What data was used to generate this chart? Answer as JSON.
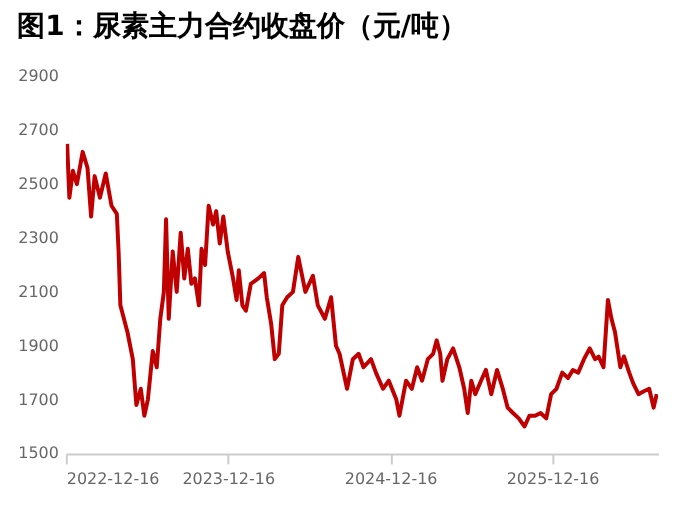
{
  "chart_data": {
    "type": "line",
    "title": "图1：尿素主力合约收盘价（元/吨）",
    "x": [
      "2022-12-19",
      "2022-12-24",
      "2023-01-01",
      "2023-01-10",
      "2023-01-23",
      "2023-02-03",
      "2023-02-11",
      "2023-02-19",
      "2023-03-03",
      "2023-03-16",
      "2023-03-29",
      "2023-04-10",
      "2023-04-14",
      "2023-04-18",
      "2023-04-26",
      "2023-05-04",
      "2023-05-16",
      "2023-05-24",
      "2023-06-03",
      "2023-06-11",
      "2023-06-19",
      "2023-06-30",
      "2023-07-09",
      "2023-07-17",
      "2023-07-25",
      "2023-07-30",
      "2023-08-05",
      "2023-08-14",
      "2023-08-23",
      "2023-09-01",
      "2023-09-09",
      "2023-09-17",
      "2023-09-25",
      "2023-10-03",
      "2023-10-12",
      "2023-10-18",
      "2023-10-26",
      "2023-11-03",
      "2023-11-13",
      "2023-11-20",
      "2023-11-28",
      "2023-12-06",
      "2023-12-16",
      "2023-12-28",
      "2024-01-05",
      "2024-01-10",
      "2024-01-18",
      "2024-01-26",
      "2024-02-06",
      "2024-02-23",
      "2024-03-07",
      "2024-03-13",
      "2024-03-23",
      "2024-03-31",
      "2024-04-09",
      "2024-04-17",
      "2024-04-28",
      "2024-05-11",
      "2024-05-23",
      "2024-06-08",
      "2024-06-25",
      "2024-07-06",
      "2024-07-22",
      "2024-08-05",
      "2024-08-16",
      "2024-08-24",
      "2024-09-10",
      "2024-09-23",
      "2024-10-06",
      "2024-10-17",
      "2024-11-03",
      "2024-11-14",
      "2024-11-30",
      "2024-12-13",
      "2024-12-30",
      "2025-01-06",
      "2025-01-21",
      "2025-02-03",
      "2025-02-15",
      "2025-02-26",
      "2025-03-11",
      "2025-03-23",
      "2025-03-31",
      "2025-04-08",
      "2025-04-13",
      "2025-04-24",
      "2025-05-07",
      "2025-05-21",
      "2025-06-01",
      "2025-06-09",
      "2025-06-17",
      "2025-06-26",
      "2025-07-09",
      "2025-07-20",
      "2025-08-01",
      "2025-08-14",
      "2025-08-27",
      "2025-09-07",
      "2025-09-19",
      "2025-10-02",
      "2025-10-15",
      "2025-10-26",
      "2025-11-08",
      "2025-11-20",
      "2025-12-03",
      "2025-12-14",
      "2025-12-26",
      "2026-01-08",
      "2026-01-21",
      "2026-02-01",
      "2026-02-13",
      "2026-02-26",
      "2026-03-11",
      "2026-03-23",
      "2026-03-31",
      "2026-04-11",
      "2026-04-21",
      "2026-04-29",
      "2026-05-07",
      "2026-05-19",
      "2026-05-27",
      "2026-06-08",
      "2026-06-17",
      "2026-06-29",
      "2026-07-10",
      "2026-07-23",
      "2026-08-02",
      "2026-08-09"
    ],
    "series": [
      {
        "color": "#c00000",
        "values": [
          2650,
          2450,
          2550,
          2500,
          2620,
          2560,
          2380,
          2530,
          2450,
          2540,
          2420,
          2390,
          2250,
          2050,
          2000,
          1950,
          1850,
          1680,
          1740,
          1640,
          1700,
          1880,
          1820,
          2000,
          2100,
          2370,
          2000,
          2250,
          2100,
          2320,
          2150,
          2260,
          2130,
          2150,
          2050,
          2260,
          2200,
          2420,
          2350,
          2400,
          2280,
          2380,
          2250,
          2150,
          2070,
          2180,
          2050,
          2030,
          2130,
          2150,
          2170,
          2080,
          1980,
          1850,
          1870,
          2050,
          2080,
          2100,
          2230,
          2100,
          2160,
          2050,
          2000,
          2080,
          1900,
          1870,
          1740,
          1850,
          1870,
          1820,
          1850,
          1800,
          1740,
          1770,
          1700,
          1640,
          1770,
          1740,
          1820,
          1770,
          1850,
          1870,
          1920,
          1870,
          1770,
          1850,
          1890,
          1820,
          1740,
          1650,
          1770,
          1720,
          1770,
          1810,
          1720,
          1810,
          1740,
          1670,
          1650,
          1630,
          1600,
          1640,
          1640,
          1650,
          1630,
          1720,
          1740,
          1800,
          1780,
          1810,
          1800,
          1850,
          1890,
          1850,
          1860,
          1820,
          2070,
          2000,
          1950,
          1820,
          1860,
          1800,
          1760,
          1720,
          1730,
          1740,
          1670,
          1720
        ]
      }
    ],
    "xlim": [
      "2022-12-16",
      "2026-08-12"
    ],
    "xticks": [
      "2022-12-16",
      "2023-12-16",
      "2024-12-16",
      "2025-12-16"
    ],
    "ylim": [
      1500,
      2900
    ],
    "yticks": [
      1500,
      1700,
      1900,
      2100,
      2300,
      2500,
      2700,
      2900
    ],
    "grid": false,
    "legend": false,
    "marker": "none",
    "line_style": "solid"
  }
}
